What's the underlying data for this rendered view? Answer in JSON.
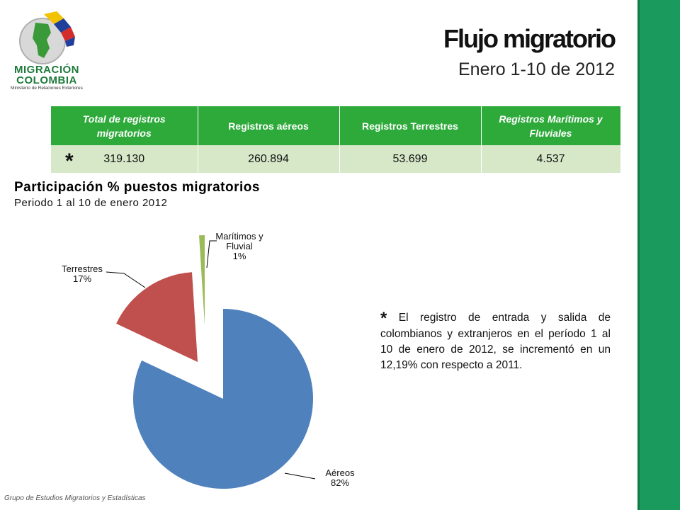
{
  "header": {
    "title": "Flujo migratorio",
    "subtitle": "Enero 1-10 de 2012"
  },
  "logo": {
    "line1": "MIGRACIÓN",
    "line2": "COLOMBIA",
    "line3": "Ministerio de Relaciones Exteriores"
  },
  "summary_table": {
    "headers": [
      "Total  de registros migratorios",
      "Registros aéreos",
      "Registros Terrestres",
      "Registros Marítimos y Fluviales"
    ],
    "marker": "*",
    "values": [
      "319.130",
      "260.894",
      "53.699",
      "4.537"
    ]
  },
  "chart_data": {
    "type": "pie",
    "title": "Participación % puestos migratorios",
    "subtitle": "Periodo 1 al 10 de enero 2012",
    "slices": [
      {
        "label": "Aéreos",
        "value": 82,
        "display": "82%",
        "color": "#4f81bd"
      },
      {
        "label": "Terrestres",
        "value": 17,
        "display": "17%",
        "color": "#c0504d"
      },
      {
        "label_lines": [
          "Marítimos y",
          "Fluvial"
        ],
        "value": 1,
        "display": "1%",
        "color": "#9bbb59"
      }
    ]
  },
  "note": {
    "marker": "*",
    "text": "El registro de entrada y salida de colombianos y extranjeros en el período 1 al 10 de enero de 2012, se incrementó en un 12,19% con respecto a 2011."
  },
  "footer": "Grupo de Estudios Migratorios y Estadísticas",
  "colors": {
    "sidebar": "#1a9a5c",
    "table_header": "#2daa3a",
    "table_row": "#d6e8c8"
  }
}
